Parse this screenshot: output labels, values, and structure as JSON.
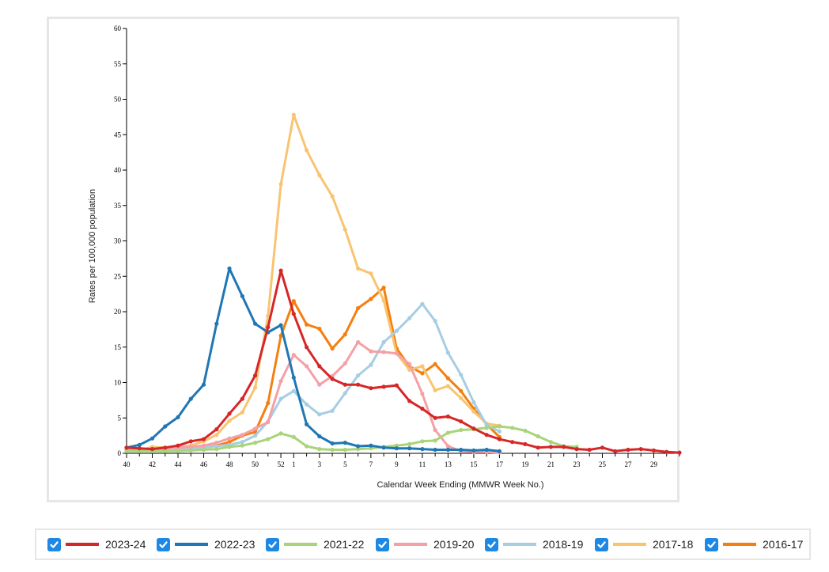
{
  "chart_data": {
    "type": "line",
    "title": "",
    "xlabel": "Calendar Week Ending (MMWR Week No.)",
    "ylabel": "Rates per 100,000 population",
    "ylim": [
      0,
      60
    ],
    "yticks": [
      0,
      5,
      10,
      15,
      20,
      25,
      30,
      35,
      40,
      45,
      50,
      55,
      60
    ],
    "weeks": [
      40,
      41,
      42,
      43,
      44,
      45,
      46,
      47,
      48,
      49,
      50,
      51,
      52,
      1,
      2,
      3,
      4,
      5,
      6,
      7,
      8,
      9,
      10,
      11,
      12,
      13,
      14,
      15,
      16,
      17,
      18,
      19,
      20,
      21,
      22,
      23,
      24,
      25,
      26,
      27,
      28,
      29,
      30,
      31
    ],
    "xtick_labels": [
      "40",
      "42",
      "44",
      "46",
      "48",
      "50",
      "52",
      "1",
      "3",
      "5",
      "7",
      "9",
      "11",
      "13",
      "15",
      "17",
      "19",
      "21",
      "23",
      "25",
      "27",
      "29"
    ],
    "series": [
      {
        "name": "2023-24",
        "color": "#d62728",
        "values": [
          0.8,
          0.7,
          0.6,
          0.8,
          1.1,
          1.7,
          2.0,
          3.4,
          5.6,
          7.7,
          11.0,
          17.8,
          25.8,
          19.7,
          15.0,
          12.3,
          10.5,
          9.7,
          9.7,
          9.2,
          9.4,
          9.6,
          7.4,
          6.3,
          5.0,
          5.2,
          4.5,
          3.5,
          2.6,
          2.0,
          1.6,
          1.3,
          0.8,
          0.9,
          0.9,
          0.6,
          0.5,
          0.8,
          0.3,
          0.5,
          0.6,
          0.4,
          0.2,
          0.1
        ]
      },
      {
        "name": "2022-23",
        "color": "#1f77b4",
        "values": [
          0.8,
          1.2,
          2.1,
          3.8,
          5.1,
          7.7,
          9.7,
          18.3,
          26.1,
          22.2,
          18.3,
          17.1,
          18.1,
          10.7,
          4.1,
          2.4,
          1.4,
          1.5,
          1.0,
          1.1,
          0.8,
          0.7,
          0.7,
          0.6,
          0.5,
          0.5,
          0.5,
          0.4,
          0.5,
          0.3
        ]
      },
      {
        "name": "2021-22",
        "color": "#a8d47a",
        "values": [
          0.3,
          0.3,
          0.3,
          0.3,
          0.3,
          0.4,
          0.5,
          0.6,
          0.9,
          1.1,
          1.5,
          2.0,
          2.8,
          2.3,
          1.0,
          0.6,
          0.5,
          0.5,
          0.6,
          0.7,
          0.9,
          1.1,
          1.3,
          1.7,
          1.8,
          2.9,
          3.3,
          3.4,
          3.6,
          3.8,
          3.6,
          3.2,
          2.4,
          1.6,
          1.0,
          0.9
        ]
      },
      {
        "name": "2019-20",
        "color": "#f4a0a6",
        "values": [
          0.5,
          0.6,
          0.6,
          0.7,
          0.8,
          0.9,
          1.1,
          1.5,
          2.1,
          2.6,
          3.5,
          4.4,
          10.2,
          13.9,
          12.3,
          9.7,
          10.9,
          12.7,
          15.7,
          14.4,
          14.3,
          14.1,
          12.6,
          8.4,
          3.3,
          1.0,
          0.3,
          0.2,
          0.2,
          0.1
        ]
      },
      {
        "name": "2018-19",
        "color": "#a7cde3",
        "values": [
          0.4,
          0.4,
          0.5,
          0.5,
          0.6,
          0.7,
          0.8,
          1.0,
          1.2,
          1.6,
          2.5,
          4.5,
          7.7,
          8.8,
          6.9,
          5.5,
          6.0,
          8.5,
          11.0,
          12.5,
          15.7,
          17.3,
          19.1,
          21.1,
          18.7,
          14.2,
          11.1,
          7.2,
          4.0,
          3.1
        ]
      },
      {
        "name": "2017-18",
        "color": "#f8c471",
        "values": [
          0.3,
          0.4,
          0.9,
          0.8,
          0.9,
          1.1,
          1.7,
          2.6,
          4.6,
          5.8,
          9.3,
          19.4,
          38.0,
          47.8,
          42.8,
          39.3,
          36.3,
          31.6,
          26.1,
          25.4,
          21.6,
          14.1,
          11.8,
          12.3,
          8.9,
          9.5,
          7.8,
          5.9,
          4.2,
          3.9
        ]
      },
      {
        "name": "2016-17",
        "color": "#f57f0e",
        "values": [
          0.4,
          0.4,
          0.5,
          0.6,
          0.7,
          0.8,
          0.8,
          1.1,
          1.6,
          2.5,
          3.0,
          7.1,
          16.6,
          21.5,
          18.2,
          17.6,
          14.8,
          16.8,
          20.5,
          21.8,
          23.4,
          14.8,
          12.3,
          11.3,
          12.6,
          10.6,
          8.8,
          6.3,
          4.1,
          2.3
        ]
      }
    ]
  },
  "legend": {
    "items": [
      {
        "label": "2023-24",
        "color": "#d62728"
      },
      {
        "label": "2022-23",
        "color": "#1f77b4"
      },
      {
        "label": "2021-22",
        "color": "#a8d47a"
      },
      {
        "label": "2019-20",
        "color": "#f4a0a6"
      },
      {
        "label": "2018-19",
        "color": "#a7cde3"
      },
      {
        "label": "2017-18",
        "color": "#f8c471"
      },
      {
        "label": "2016-17",
        "color": "#f57f0e"
      }
    ]
  }
}
